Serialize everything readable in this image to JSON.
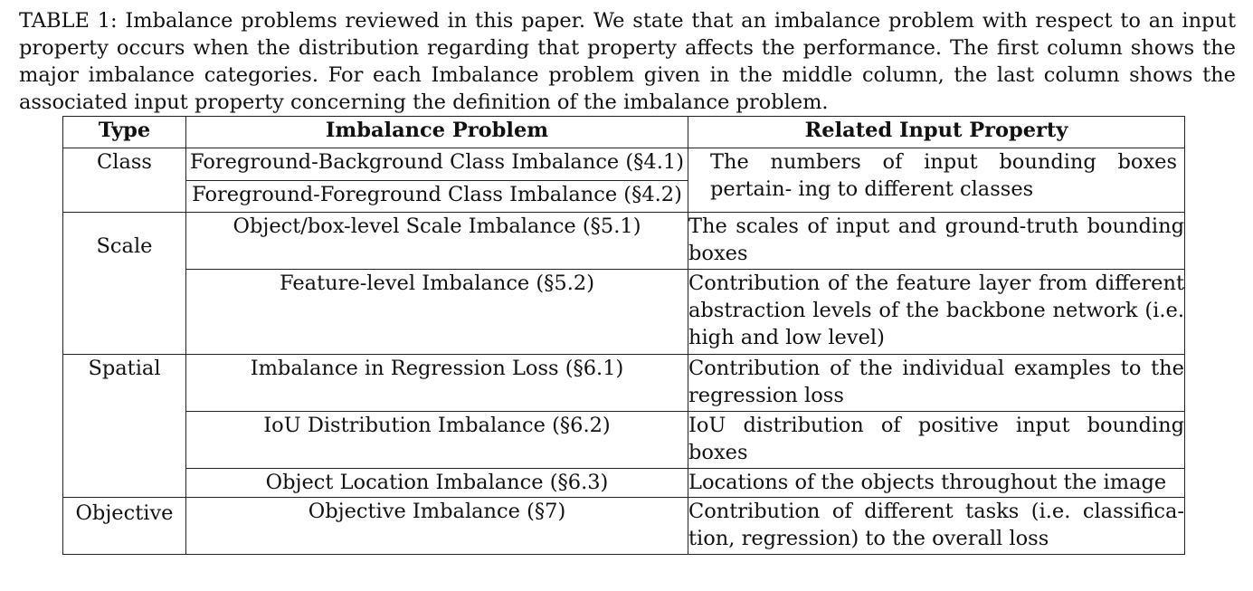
{
  "caption": "TABLE 1: Imbalance problems reviewed in this paper. We state that an imbalance problem with respect to an input property occurs when the distribution regarding that property affects the performance. The first column shows the major imbalance categories. For each Imbalance problem given in the middle column, the last column shows the associated input property concerning the definition of the imbalance problem.",
  "headers": {
    "type": "Type",
    "problem": "Imbalance Problem",
    "property": "Related Input Property"
  },
  "rows": {
    "class": {
      "type": "Class",
      "problem_1": "Foreground-Background Class Imbalance (§4.1)",
      "problem_2": "Foreground-Foreground Class Imbalance (§4.2)",
      "property": "The numbers of input bounding boxes pertain- ing to different classes"
    },
    "scale": {
      "type": "Scale",
      "problem_1": "Object/box-level Scale Imbalance (§5.1)",
      "property_1": "The scales of input and ground-truth bounding boxes",
      "problem_2": "Feature-level Imbalance (§5.2)",
      "property_2": "Contribution of the feature layer from different abstraction levels of the backbone network (i.e. high and low level)"
    },
    "spatial": {
      "type": "Spatial",
      "problem_1": "Imbalance in Regression Loss (§6.1)",
      "property_1": "Contribution of the individual examples to the regression loss",
      "problem_2": "IoU Distribution Imbalance (§6.2)",
      "property_2": "IoU distribution of positive input bounding boxes",
      "problem_3": "Object Location Imbalance (§6.3)",
      "property_3": "Locations of the objects throughout the image"
    },
    "objective": {
      "type": "Objective",
      "problem_1": "Objective Imbalance (§7)",
      "property_1": "Contribution of different tasks (i.e. classifica- tion, regression) to the overall loss"
    }
  }
}
